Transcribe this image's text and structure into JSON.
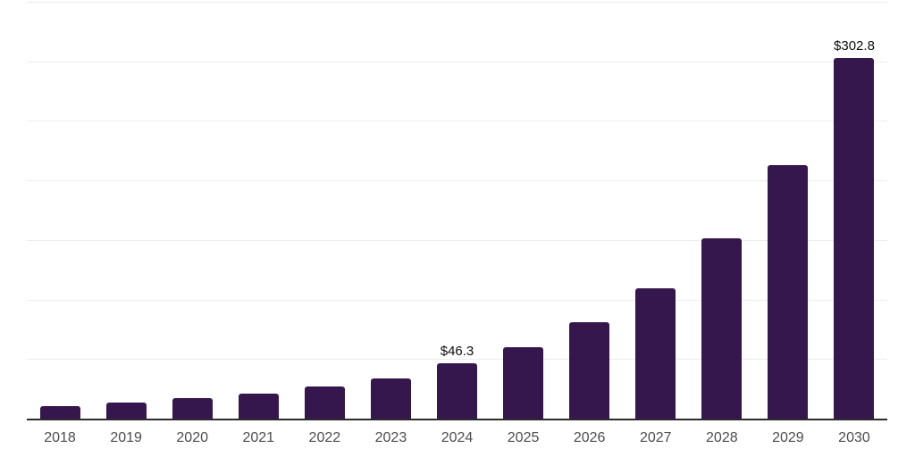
{
  "chart_data": {
    "type": "bar",
    "title": "",
    "xlabel": "",
    "ylabel": "",
    "categories": [
      "2018",
      "2019",
      "2020",
      "2021",
      "2022",
      "2023",
      "2024",
      "2025",
      "2026",
      "2027",
      "2028",
      "2029",
      "2030"
    ],
    "values": [
      10.2,
      13.4,
      17.1,
      21.0,
      26.7,
      34.1,
      46.3,
      60.0,
      80.9,
      109.7,
      151.5,
      213.0,
      302.8
    ],
    "data_labels": {
      "2024": "$46.3",
      "2030": "$302.8"
    },
    "ylim": [
      0,
      350
    ],
    "gridline_interval": 50,
    "grid": true,
    "legend": false,
    "y_tick_labels_visible": false,
    "colors": {
      "bar": "#36174d",
      "background": "#ffffff",
      "gridline": "#ededed",
      "axis_line": "#2b2b2b",
      "tick_label": "#4d4d4d",
      "data_label": "#0d0d0d"
    }
  }
}
